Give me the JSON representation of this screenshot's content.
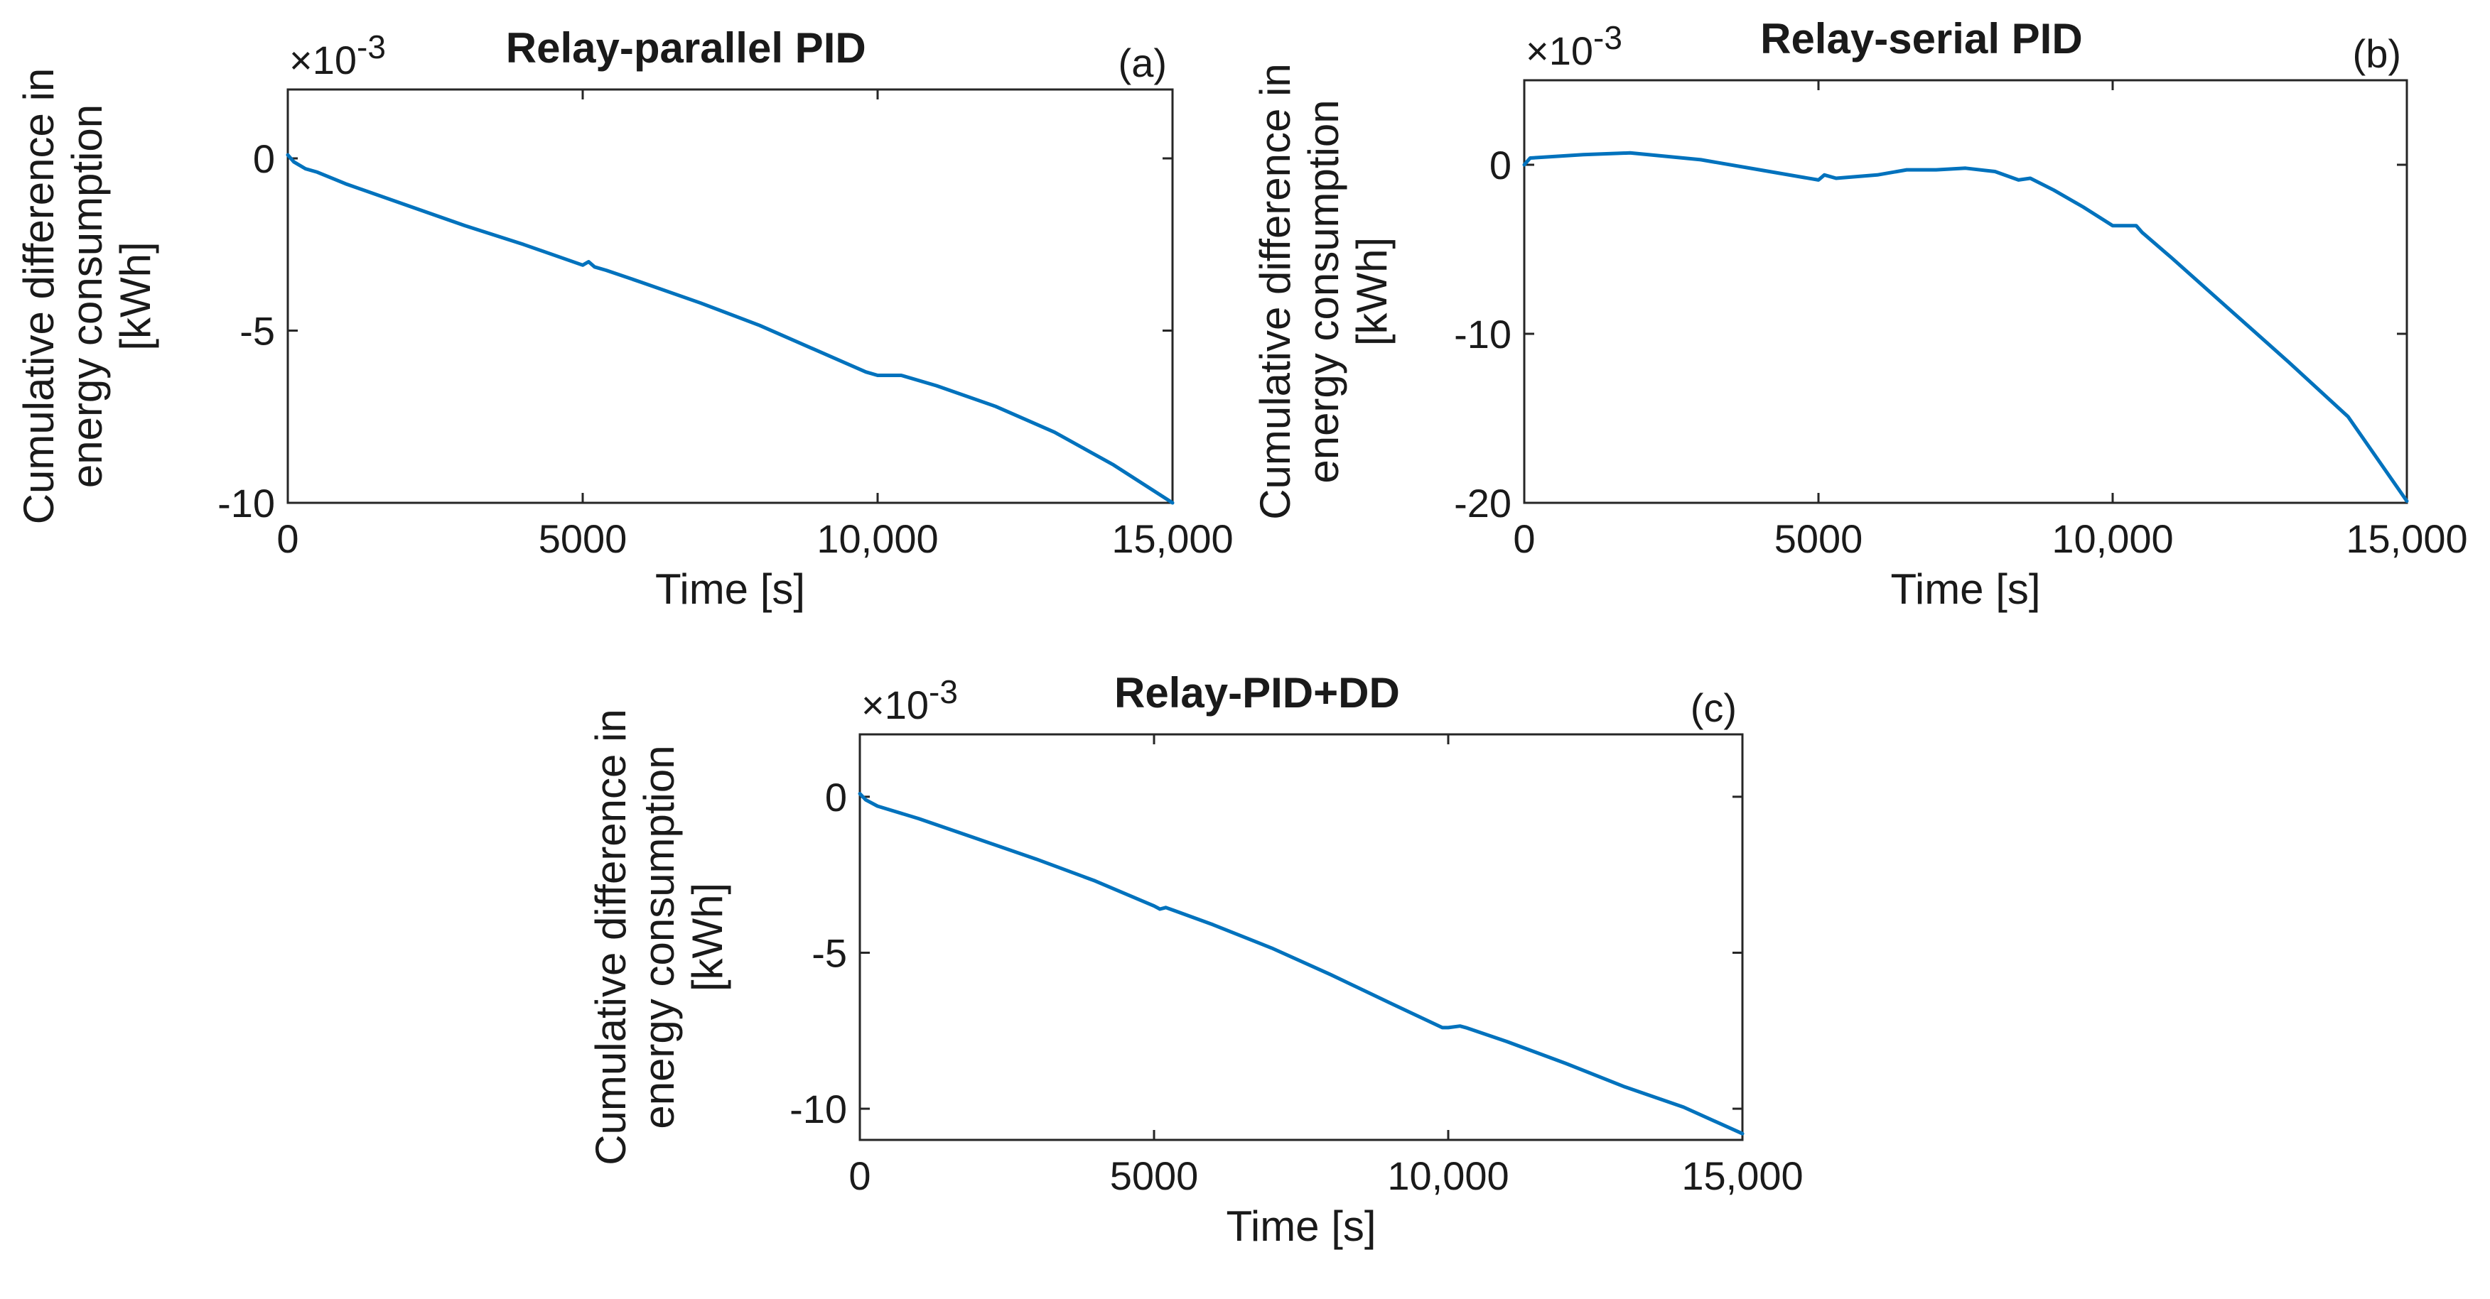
{
  "figure": {
    "name": "cumulative-energy-difference-figure"
  },
  "chart_data": [
    {
      "type": "line",
      "panel_tag": "(a)",
      "title": "Relay-parallel PID",
      "xlabel": "Time [s]",
      "ylabel_lines": [
        "Cumulative difference in",
        "energy consumption",
        "[kWh]"
      ],
      "exponent": {
        "base": "×10",
        "power": "-3"
      },
      "xlim": [
        0,
        15000
      ],
      "ylim": [
        -10,
        2
      ],
      "xticks": [
        0,
        5000,
        10000,
        15000
      ],
      "xtick_labels": [
        "0",
        "5000",
        "10,000",
        "15,000"
      ],
      "yticks": [
        -10,
        -5,
        0
      ],
      "ytick_labels": [
        "-10",
        "-5",
        "0"
      ],
      "series": [
        {
          "name": "Cumulative difference",
          "color": "#0072BD",
          "x": [
            0,
            100,
            300,
            500,
            1000,
            2000,
            3000,
            4000,
            5000,
            5100,
            5200,
            5400,
            6000,
            7000,
            8000,
            9000,
            9800,
            10000,
            10400,
            11000,
            12000,
            13000,
            14000,
            15000
          ],
          "y": [
            0.1,
            -0.1,
            -0.3,
            -0.4,
            -0.75,
            -1.35,
            -1.95,
            -2.5,
            -3.1,
            -3.0,
            -3.15,
            -3.25,
            -3.6,
            -4.2,
            -4.85,
            -5.6,
            -6.2,
            -6.3,
            -6.3,
            -6.6,
            -7.2,
            -7.95,
            -8.9,
            -10.0
          ]
        }
      ]
    },
    {
      "type": "line",
      "panel_tag": "(b)",
      "title": "Relay-serial PID",
      "xlabel": "Time [s]",
      "ylabel_lines": [
        "Cumulative difference in",
        "energy consumption",
        "[kWh]"
      ],
      "exponent": {
        "base": "×10",
        "power": "-3"
      },
      "xlim": [
        0,
        15000
      ],
      "ylim": [
        -20,
        5
      ],
      "xticks": [
        0,
        5000,
        10000,
        15000
      ],
      "xtick_labels": [
        "0",
        "5000",
        "10,000",
        "15,000"
      ],
      "yticks": [
        -20,
        -10,
        0
      ],
      "ytick_labels": [
        "-20",
        "-10",
        "0"
      ],
      "series": [
        {
          "name": "Cumulative difference",
          "color": "#0072BD",
          "x": [
            0,
            100,
            1000,
            1800,
            3000,
            4000,
            5000,
            5100,
            5300,
            6000,
            6500,
            7000,
            7500,
            8000,
            8400,
            8600,
            9000,
            9500,
            10000,
            10400,
            10500,
            11000,
            12000,
            13000,
            14000,
            15000
          ],
          "y": [
            0.0,
            0.4,
            0.6,
            0.7,
            0.3,
            -0.3,
            -0.9,
            -0.6,
            -0.8,
            -0.6,
            -0.3,
            -0.3,
            -0.2,
            -0.4,
            -0.9,
            -0.8,
            -1.5,
            -2.5,
            -3.6,
            -3.6,
            -4.0,
            -5.5,
            -8.6,
            -11.7,
            -14.9,
            -19.9
          ]
        }
      ]
    },
    {
      "type": "line",
      "panel_tag": "(c)",
      "title": "Relay-PID+DD",
      "xlabel": "Time [s]",
      "ylabel_lines": [
        "Cumulative difference in",
        "energy consumption",
        "[kWh]"
      ],
      "exponent": {
        "base": "×10",
        "power": "-3"
      },
      "xlim": [
        0,
        15000
      ],
      "ylim": [
        -11,
        2
      ],
      "xticks": [
        0,
        5000,
        10000,
        15000
      ],
      "xtick_labels": [
        "0",
        "5000",
        "10,000",
        "15,000"
      ],
      "yticks": [
        -10,
        -5,
        0
      ],
      "ytick_labels": [
        "-10",
        "-5",
        "0"
      ],
      "series": [
        {
          "name": "Cumulative difference",
          "color": "#0072BD",
          "x": [
            0,
            100,
            300,
            1000,
            2000,
            3000,
            4000,
            5000,
            5100,
            5200,
            6000,
            7000,
            8000,
            9000,
            9900,
            10000,
            10200,
            10300,
            11000,
            12000,
            13000,
            14000,
            15000
          ],
          "y": [
            0.1,
            -0.1,
            -0.3,
            -0.7,
            -1.35,
            -2.0,
            -2.7,
            -3.5,
            -3.6,
            -3.55,
            -4.1,
            -4.85,
            -5.7,
            -6.6,
            -7.4,
            -7.4,
            -7.35,
            -7.4,
            -7.85,
            -8.55,
            -9.3,
            -9.95,
            -10.8
          ]
        }
      ]
    }
  ]
}
